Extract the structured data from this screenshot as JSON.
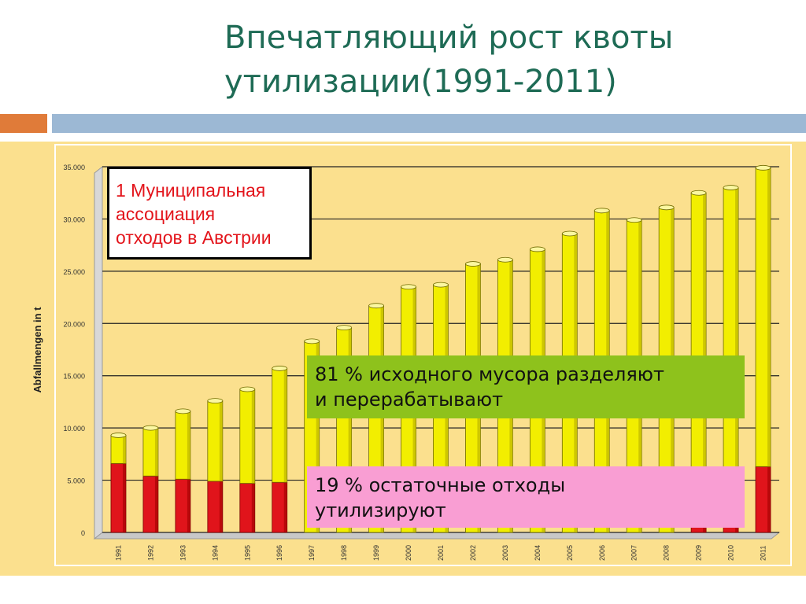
{
  "slide": {
    "title_line1": "Впечатляющий рост квоты",
    "title_line2": "утилизации(1991-2011)"
  },
  "colors": {
    "title": "#1e6b55",
    "accent_orange": "#e07b39",
    "accent_blue": "#9cb8d4",
    "chart_background": "#fbe08e",
    "bar_top": "#f2ee00",
    "bar_bottom": "#e0141b",
    "green_box": "#8ec21c",
    "pink_box": "#f99ed3"
  },
  "boxes": {
    "association": [
      "1 Муниципальная",
      "ассоциация",
      "отходов в Австрии"
    ],
    "separated": [
      "81 % исходного мусора разделяют",
      "и перерабатывают"
    ],
    "residual": [
      "19 % остаточные отходы",
      "утилизируют"
    ]
  },
  "chart_data": {
    "type": "bar",
    "stacked": true,
    "ylabel": "Abfallmengen in t",
    "xlabel": "",
    "ylim": [
      0,
      35000
    ],
    "yticks": [
      "0",
      "5.000",
      "10.000",
      "15.000",
      "20.000",
      "25.000",
      "30.000",
      "35.000"
    ],
    "grid": true,
    "categories": [
      "1991",
      "1992",
      "1993",
      "1994",
      "1995",
      "1996",
      "1997",
      "1998",
      "1999",
      "2000",
      "2001",
      "2002",
      "2003",
      "2004",
      "2005",
      "2006",
      "2007",
      "2008",
      "2009",
      "2010",
      "2011"
    ],
    "series": [
      {
        "values": [
          6600,
          5400,
          5100,
          4900,
          4700,
          4800,
          0,
          0,
          0,
          0,
          0,
          0,
          0,
          0,
          0,
          0,
          0,
          0,
          6000,
          6100,
          6300
        ]
      },
      {
        "values": [
          2700,
          4600,
          6500,
          7700,
          9000,
          10900,
          18300,
          19600,
          21700,
          23500,
          23700,
          25700,
          26100,
          27100,
          28600,
          30800,
          29900,
          31100,
          26500,
          26900,
          28600
        ]
      }
    ],
    "hidden_note": "bars 1997–2008 partly covered by text boxes"
  }
}
